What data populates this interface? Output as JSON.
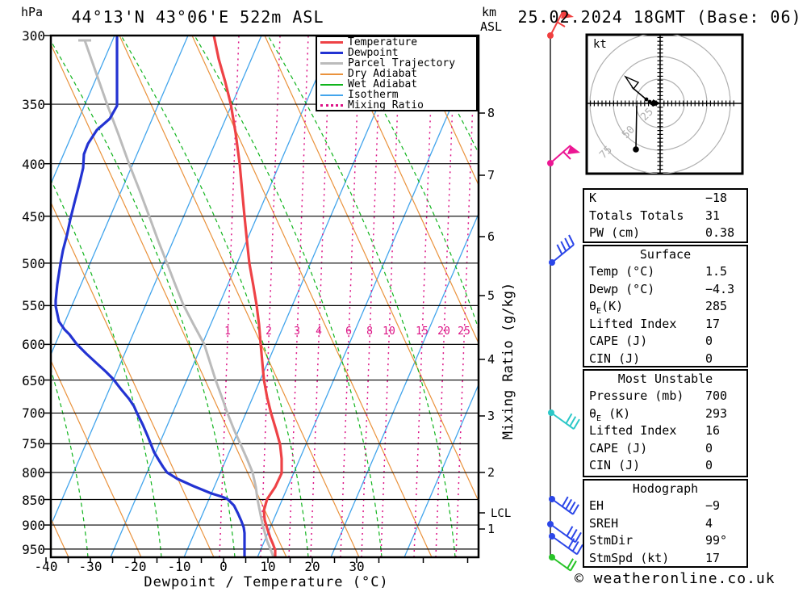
{
  "header": {
    "station_title": "44°13'N 43°06'E 522m ASL",
    "run_datetime": "25.02.2024 18GMT (Base: 06)",
    "pressure_axis_unit": "hPa",
    "altitude_axis_unit": "km",
    "altitude_axis_ref": "ASL"
  },
  "legend": {
    "items": [
      {
        "label": "Temperature",
        "color": "#ee4246",
        "style": "solid",
        "thick": 3
      },
      {
        "label": "Dewpoint",
        "color": "#2333d2",
        "style": "solid",
        "thick": 3
      },
      {
        "label": "Parcel Trajectory",
        "color": "#bbbbbb",
        "style": "solid",
        "thick": 3
      },
      {
        "label": "Dry Adiabat",
        "color": "#ea923c",
        "style": "solid",
        "thick": 2
      },
      {
        "label": "Wet Adiabat",
        "color": "#10b41c",
        "style": "solid",
        "thick": 2
      },
      {
        "label": "Isotherm",
        "color": "#43a5ec",
        "style": "solid",
        "thick": 2
      },
      {
        "label": "Mixing Ratio",
        "color": "#dc1285",
        "style": "dotted",
        "thick": 3
      }
    ]
  },
  "axes": {
    "pressure_ticks": [
      300,
      350,
      400,
      450,
      500,
      550,
      600,
      650,
      700,
      750,
      800,
      850,
      900,
      950
    ],
    "km_ticks": [
      8,
      7,
      6,
      5,
      4,
      3,
      2,
      1
    ],
    "lcl_label": "LCL",
    "temp_ticks": [
      -40,
      -30,
      -20,
      -10,
      0,
      10,
      20,
      30
    ],
    "x_axis_label": "Dewpoint / Temperature (°C)",
    "right_axis_label": "Mixing Ratio (g/kg)",
    "mixing_ratio_values": [
      1,
      2,
      3,
      4,
      6,
      8,
      10,
      15,
      20,
      25
    ]
  },
  "hodograph": {
    "unit": "kt",
    "ring_labels": [
      "25",
      "50",
      "75"
    ]
  },
  "indices": {
    "rows": [
      [
        "K",
        "−18"
      ],
      [
        "Totals Totals",
        "31"
      ],
      [
        "PW (cm)",
        "0.38"
      ]
    ],
    "surface": {
      "title": "Surface",
      "rows": [
        [
          "Temp (°C)",
          "1.5"
        ],
        [
          "Dewp (°C)",
          "−4.3"
        ],
        [
          "θE(K)",
          "285"
        ],
        [
          "Lifted Index",
          "17"
        ],
        [
          "CAPE (J)",
          "0"
        ],
        [
          "CIN (J)",
          "0"
        ]
      ]
    },
    "most_unstable": {
      "title": "Most Unstable",
      "rows": [
        [
          "Pressure (mb)",
          "700"
        ],
        [
          "θE (K)",
          "293"
        ],
        [
          "Lifted Index",
          "16"
        ],
        [
          "CAPE (J)",
          "0"
        ],
        [
          "CIN (J)",
          "0"
        ]
      ]
    },
    "hodograph_section": {
      "title": "Hodograph",
      "rows": [
        [
          "EH",
          "−9"
        ],
        [
          "SREH",
          "4"
        ],
        [
          "StmDir",
          "99°"
        ],
        [
          "StmSpd (kt)",
          "17"
        ]
      ]
    }
  },
  "watermark": "© weatheronline.co.uk",
  "chart_data": {
    "type": "line",
    "subtype": "skewT_logP_sounding",
    "title": "44°13'N 43°06'E 522m ASL",
    "x_axis": {
      "label": "Dewpoint / Temperature (°C)",
      "range": [
        -40,
        38
      ],
      "ticks": [
        -40,
        -30,
        -20,
        -10,
        0,
        10,
        20,
        30
      ]
    },
    "y_axis": {
      "label": "hPa",
      "scale": "log",
      "range_hpa": [
        300,
        960
      ],
      "ticks": [
        300,
        350,
        400,
        450,
        500,
        550,
        600,
        650,
        700,
        750,
        800,
        850,
        900,
        950
      ]
    },
    "secondary_y_axis": {
      "label": "km ASL",
      "ticks": [
        1,
        2,
        3,
        4,
        5,
        6,
        7,
        8
      ],
      "lcl_marker_km": 1.4
    },
    "pressure_hpa": [
      300,
      350,
      400,
      450,
      500,
      550,
      600,
      650,
      700,
      750,
      800,
      850,
      900,
      950
    ],
    "series": [
      {
        "name": "Temperature",
        "unit": "°C",
        "values": [
          -48,
          -40,
          -33,
          -28,
          -23,
          -18,
          -14,
          -10,
          -6,
          -1,
          1,
          -2,
          0,
          1.5
        ]
      },
      {
        "name": "Dewpoint",
        "unit": "°C",
        "values": [
          -70,
          -68,
          -66,
          -63,
          -61,
          -59,
          -49,
          -39,
          -31,
          -27,
          -23,
          -8,
          -4.5,
          -4.3
        ]
      },
      {
        "name": "Parcel Trajectory",
        "unit": "°C",
        "values": [
          -56,
          -48,
          -41,
          -35,
          -29,
          -24,
          -19,
          -15,
          -11,
          -7,
          -4,
          -2,
          0,
          1.5
        ]
      }
    ],
    "mixing_ratio_isopleths_gkg": [
      1,
      2,
      3,
      4,
      6,
      8,
      10,
      15,
      20,
      25
    ],
    "wind_barbs": [
      {
        "level_hpa": 300,
        "color": "red",
        "symbol": "pennant+barb"
      },
      {
        "level_hpa": 400,
        "color": "pink",
        "symbol": "pennant+barb"
      },
      {
        "level_hpa": 500,
        "color": "blue",
        "symbol": "4 barbs"
      },
      {
        "level_hpa": 700,
        "color": "cyan",
        "symbol": "3 barbs"
      },
      {
        "level_hpa": 850,
        "color": "blue",
        "symbol": "4 barbs"
      },
      {
        "level_hpa": 900,
        "color": "blue",
        "symbol": "3 barbs"
      },
      {
        "level_hpa": 925,
        "color": "blue",
        "symbol": "3 barbs"
      },
      {
        "level_hpa": 950,
        "color": "green",
        "symbol": "2 barbs"
      }
    ],
    "grid": "skewed isotherms / dry adiabats / wet adiabats / mixing ratio",
    "legend_position": "top-right-inside"
  }
}
